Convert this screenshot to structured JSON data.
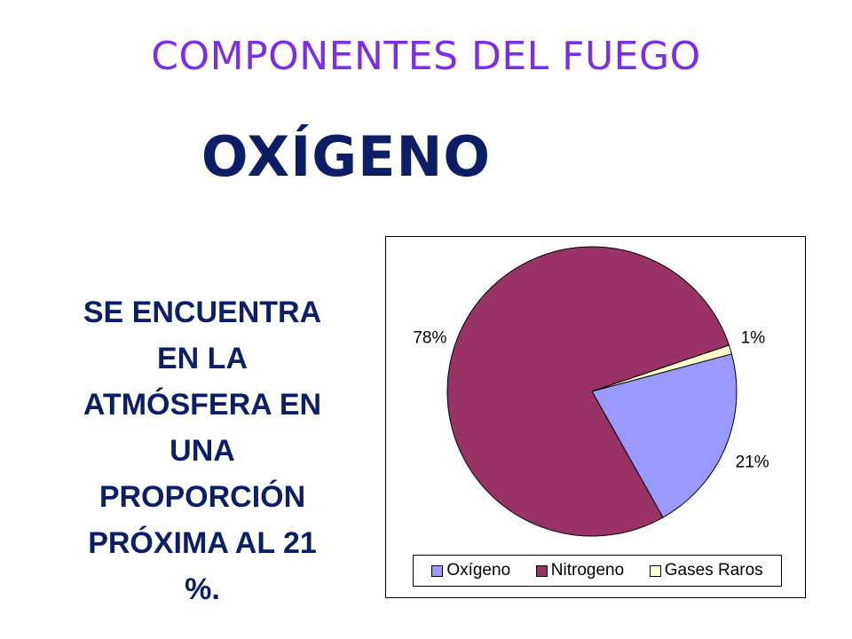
{
  "slide": {
    "title": "COMPONENTES DEL FUEGO",
    "heading": "OXÍGENO",
    "body_lines": [
      "SE ENCUENTRA",
      "EN LA",
      "ATMÓSFERA EN",
      "UNA",
      "PROPORCIÓN",
      "PRÓXIMA AL 21",
      "%."
    ]
  },
  "chart_data": {
    "type": "pie",
    "title": "",
    "legend_position": "bottom",
    "start_angle_deg": 15,
    "direction": "clockwise",
    "slices": [
      {
        "label": "Oxígeno",
        "value": 21,
        "display": "21%",
        "color": "#9999ff"
      },
      {
        "label": "Nitrogeno",
        "value": 78,
        "display": "78%",
        "color": "#993366"
      },
      {
        "label": "Gases Raros",
        "value": 1,
        "display": "1%",
        "color": "#ffffcc"
      }
    ]
  }
}
